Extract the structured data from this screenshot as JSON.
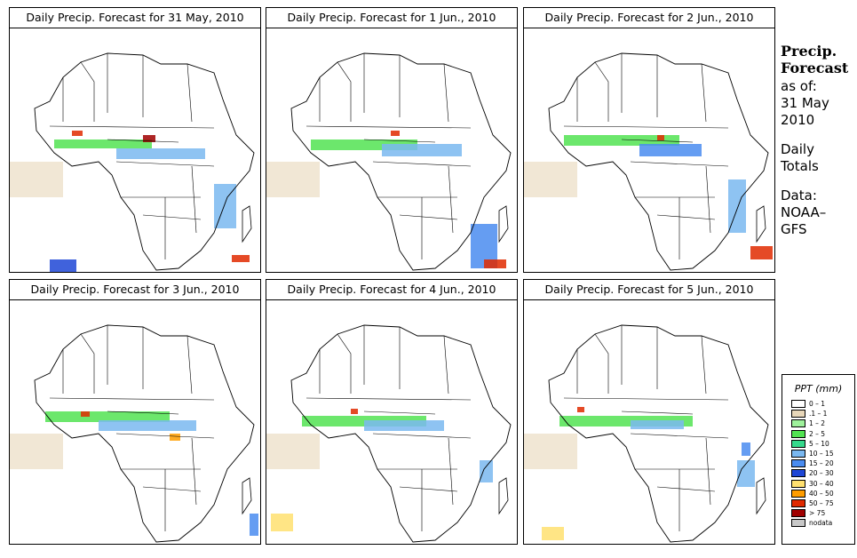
{
  "panels": [
    {
      "title": "Daily Precip. Forecast for  31 May, 2010"
    },
    {
      "title": "Daily Precip. Forecast for  1 Jun., 2010"
    },
    {
      "title": "Daily Precip. Forecast for  2 Jun., 2010"
    },
    {
      "title": "Daily Precip. Forecast for  3 Jun., 2010"
    },
    {
      "title": "Daily Precip. Forecast for  4 Jun., 2010"
    },
    {
      "title": "Daily Precip. Forecast for  5 Jun., 2010"
    }
  ],
  "side": {
    "heading1": "Precip.",
    "heading2": "Forecast",
    "asof": "as of:",
    "date1": "31 May",
    "date2": "2010",
    "daily1": "Daily",
    "daily2": "Totals",
    "data1": "Data:",
    "data2": "NOAA–",
    "data3": "GFS"
  },
  "legend": {
    "title": "PPT (mm)",
    "items": [
      {
        "label": "0 – 1",
        "color": "#ffffff"
      },
      {
        "label": ".1 – 1",
        "color": "#e8d7b9"
      },
      {
        "label": "1 – 2",
        "color": "#9ff29c"
      },
      {
        "label": "2 – 5",
        "color": "#52e352"
      },
      {
        "label": "5 – 10",
        "color": "#36d98c"
      },
      {
        "label": "10 – 15",
        "color": "#7ab8f0"
      },
      {
        "label": "15 – 20",
        "color": "#4a8cf0"
      },
      {
        "label": "20 – 30",
        "color": "#1e46d6"
      },
      {
        "label": "30 – 40",
        "color": "#ffe070"
      },
      {
        "label": "40 – 50",
        "color": "#ff9d00"
      },
      {
        "label": "50 – 75",
        "color": "#e02a00"
      },
      {
        "label": "> 75",
        "color": "#a00000"
      },
      {
        "label": "nodata",
        "color": "#c8c8c8"
      }
    ]
  }
}
